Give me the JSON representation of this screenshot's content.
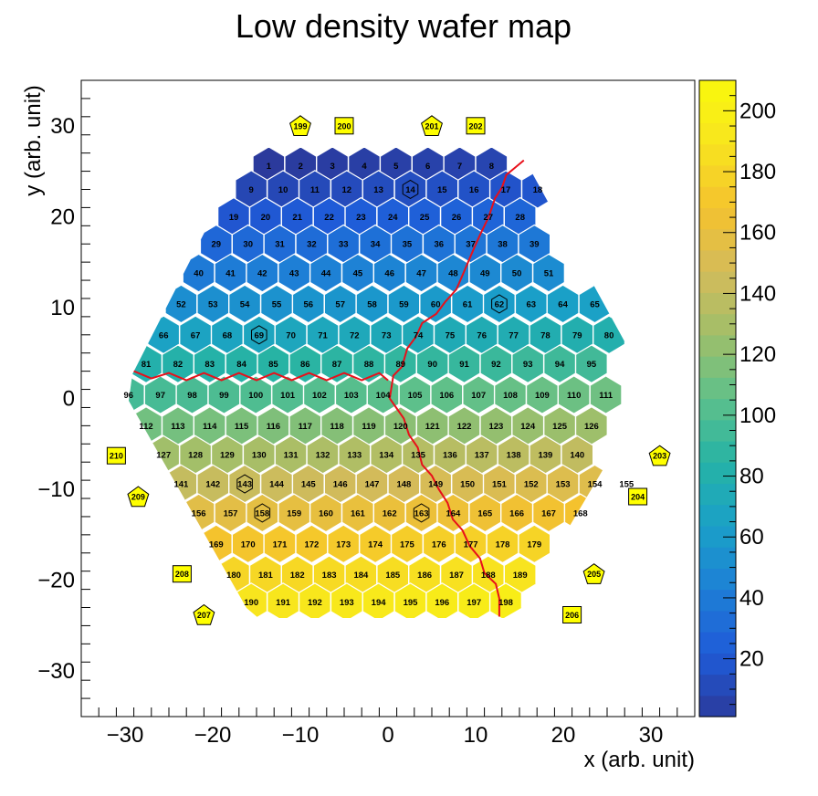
{
  "chart_data": {
    "type": "heatmap",
    "title": "Low density wafer map",
    "xlabel": "x (arb. unit)",
    "ylabel": "y (arb. unit)",
    "xlim": [
      -35,
      35
    ],
    "ylim": [
      -35,
      35
    ],
    "x_ticks": [
      -30,
      -20,
      -10,
      0,
      10,
      20,
      30
    ],
    "y_ticks": [
      -30,
      -20,
      -10,
      0,
      10,
      20,
      30
    ],
    "x_tick_labels": [
      "−30",
      "−20",
      "−10",
      "0",
      "10",
      "20",
      "30"
    ],
    "y_tick_labels": [
      "−30",
      "−20",
      "−10",
      "0",
      "10",
      "20",
      "30"
    ],
    "z_range": [
      1,
      210
    ],
    "colorbar_ticks": [
      20,
      40,
      60,
      80,
      100,
      120,
      140,
      160,
      180,
      200
    ],
    "colorbar_tick_labels": [
      "20",
      "40",
      "60",
      "80",
      "100",
      "120",
      "140",
      "160",
      "180",
      "200"
    ],
    "grid": false,
    "colorscale": [
      "#2b3a9c",
      "#1f5bd8",
      "#1e7fd6",
      "#1aa0c8",
      "#26b3a5",
      "#5ec08a",
      "#9fbf6a",
      "#d4bb5a",
      "#f4c22e",
      "#f8e41f",
      "#f9f90c"
    ],
    "rows": [
      {
        "y": 25.6,
        "x_start": -13.6,
        "first": 1,
        "count": 8
      },
      {
        "y": 23.0,
        "x_start": -15.6,
        "first": 9,
        "count": 10
      },
      {
        "y": 20.0,
        "x_start": -17.6,
        "first": 19,
        "count": 10
      },
      {
        "y": 17.0,
        "x_start": -19.6,
        "first": 29,
        "count": 11
      },
      {
        "y": 13.8,
        "x_start": -21.6,
        "first": 40,
        "count": 12
      },
      {
        "y": 10.4,
        "x_start": -23.6,
        "first": 52,
        "count": 14
      },
      {
        "y": 7.0,
        "x_start": -25.6,
        "first": 66,
        "count": 15
      },
      {
        "y": 3.8,
        "x_start": -27.6,
        "first": 81,
        "count": 15
      },
      {
        "y": 0.4,
        "x_start": -29.6,
        "first": 96,
        "count": 16
      },
      {
        "y": -3.0,
        "x_start": -27.6,
        "first": 112,
        "count": 15
      },
      {
        "y": -6.2,
        "x_start": -25.6,
        "first": 127,
        "count": 14
      },
      {
        "y": -9.4,
        "x_start": -23.6,
        "first": 141,
        "count": 15
      },
      {
        "y": -12.6,
        "x_start": -21.6,
        "first": 156,
        "count": 13
      },
      {
        "y": -16.0,
        "x_start": -19.6,
        "first": 169,
        "count": 11
      },
      {
        "y": -19.4,
        "x_start": -17.6,
        "first": 180,
        "count": 10
      },
      {
        "y": -22.4,
        "x_start": -15.6,
        "first": 190,
        "count": 9
      }
    ],
    "special_cells": [
      14,
      62,
      69,
      143,
      158,
      163
    ],
    "markers": [
      {
        "id": 199,
        "shape": "pentagon",
        "x": -10.0,
        "y": 30.0
      },
      {
        "id": 200,
        "shape": "square",
        "x": -5.0,
        "y": 30.0
      },
      {
        "id": 201,
        "shape": "pentagon",
        "x": 5.0,
        "y": 30.0
      },
      {
        "id": 202,
        "shape": "square",
        "x": 10.0,
        "y": 30.0
      },
      {
        "id": 203,
        "shape": "pentagon",
        "x": 31.0,
        "y": -6.3
      },
      {
        "id": 204,
        "shape": "square",
        "x": 28.5,
        "y": -10.8
      },
      {
        "id": 205,
        "shape": "pentagon",
        "x": 23.5,
        "y": -19.3
      },
      {
        "id": 206,
        "shape": "square",
        "x": 21.0,
        "y": -23.8
      },
      {
        "id": 207,
        "shape": "pentagon",
        "x": -21.0,
        "y": -23.8
      },
      {
        "id": 208,
        "shape": "square",
        "x": -23.5,
        "y": -19.3
      },
      {
        "id": 209,
        "shape": "pentagon",
        "x": -28.5,
        "y": -10.8
      },
      {
        "id": 210,
        "shape": "square",
        "x": -31.0,
        "y": -6.3
      }
    ],
    "boundaries": [
      {
        "name": "",
        "points": [
          [
            -29.0,
            3.0
          ],
          [
            -27.0,
            2.2
          ],
          [
            -25.0,
            2.8
          ],
          [
            -23.0,
            2.0
          ],
          [
            -21.0,
            2.8
          ],
          [
            -19.0,
            2.0
          ],
          [
            -17.0,
            2.8
          ],
          [
            -15.0,
            2.0
          ],
          [
            -13.0,
            2.8
          ],
          [
            -11.0,
            2.0
          ],
          [
            -9.0,
            2.8
          ],
          [
            -7.0,
            2.0
          ],
          [
            -5.0,
            2.8
          ],
          [
            -3.0,
            2.0
          ],
          [
            -1.0,
            2.8
          ],
          [
            0.0,
            2.0
          ]
        ]
      },
      {
        "name": "",
        "points": [
          [
            15.5,
            26.2
          ],
          [
            14.5,
            25.4
          ],
          [
            13.5,
            24.6
          ],
          [
            13.0,
            23.2
          ],
          [
            12.2,
            22.0
          ],
          [
            11.5,
            20.0
          ],
          [
            10.5,
            18.0
          ],
          [
            9.8,
            16.5
          ],
          [
            8.7,
            14.0
          ],
          [
            7.8,
            12.0
          ],
          [
            6.5,
            10.6
          ],
          [
            5.5,
            9.3
          ],
          [
            3.9,
            8.3
          ],
          [
            3.2,
            6.8
          ],
          [
            2.2,
            5.5
          ],
          [
            1.6,
            3.5
          ],
          [
            0.6,
            2.5
          ],
          [
            0.2,
            0.0
          ],
          [
            1.8,
            -2.2
          ],
          [
            2.4,
            -4.0
          ],
          [
            3.4,
            -5.4
          ],
          [
            3.9,
            -7.3
          ],
          [
            5.0,
            -8.5
          ],
          [
            5.8,
            -10.0
          ],
          [
            6.8,
            -11.5
          ],
          [
            7.4,
            -13.3
          ],
          [
            8.5,
            -14.5
          ],
          [
            9.3,
            -16.2
          ],
          [
            10.5,
            -17.6
          ],
          [
            11.0,
            -19.2
          ],
          [
            12.3,
            -20.4
          ],
          [
            12.7,
            -22.0
          ],
          [
            12.7,
            -24.0
          ]
        ]
      }
    ]
  }
}
